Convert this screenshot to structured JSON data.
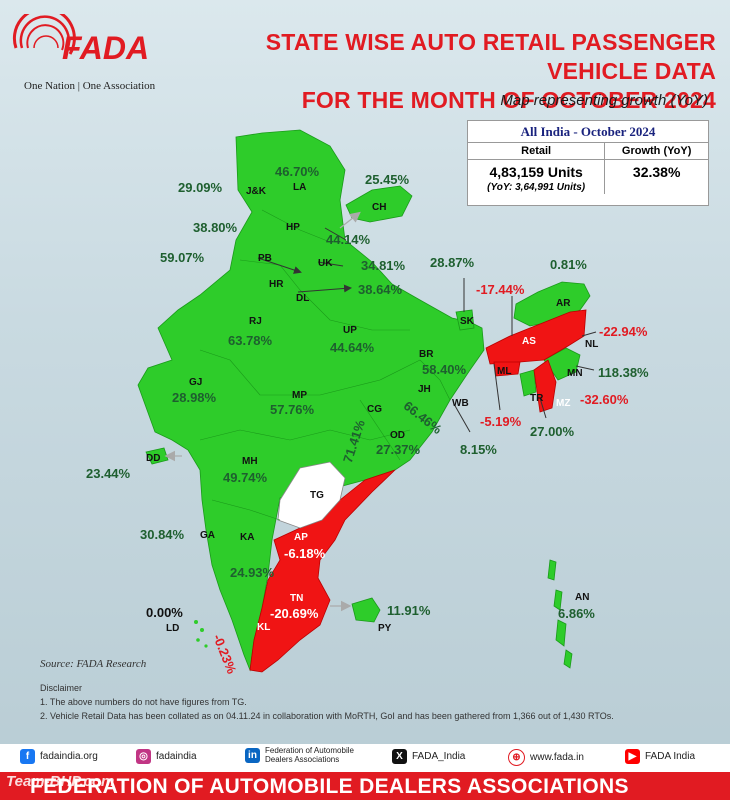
{
  "brand": {
    "logo_text": "FADA",
    "tagline": "One Nation | One Association"
  },
  "header": {
    "title_line1": "STATE WISE AUTO RETAIL PASSENGER VEHICLE DATA",
    "title_line2": "FOR THE MONTH OF OCTOBER 2024",
    "subtitle": "Map representing growth (YoY)"
  },
  "all_india": {
    "heading": "All India - October 2024",
    "col_retail": "Retail",
    "col_growth": "Growth (YoY)",
    "retail_value": "4,83,159 Units",
    "retail_prev": "(YoY: 3,64,991 Units)",
    "growth_value": "32.38%"
  },
  "states": [
    {
      "code": "J&K",
      "growth": "29.09%",
      "status": "positive"
    },
    {
      "code": "LA",
      "growth": "46.70%",
      "status": "positive"
    },
    {
      "code": "CH",
      "growth": "25.45%",
      "status": "positive"
    },
    {
      "code": "HP",
      "growth": "44.14%",
      "status": "positive"
    },
    {
      "code": "PB",
      "growth": "38.80%",
      "status": "positive"
    },
    {
      "code": "HR",
      "growth": "59.07%",
      "status": "positive"
    },
    {
      "code": "UK",
      "growth": "34.81%",
      "status": "positive"
    },
    {
      "code": "DL",
      "growth": "38.64%",
      "status": "positive"
    },
    {
      "code": "RJ",
      "growth": "63.78%",
      "status": "positive"
    },
    {
      "code": "UP",
      "growth": "44.64%",
      "status": "positive"
    },
    {
      "code": "SK",
      "growth": "28.87%",
      "status": "positive"
    },
    {
      "code": "AR",
      "growth": "0.81%",
      "status": "positive"
    },
    {
      "code": "AS",
      "growth": "-17.44%",
      "status": "negative"
    },
    {
      "code": "NL",
      "growth": "-22.94%",
      "status": "negative"
    },
    {
      "code": "BR",
      "growth": "58.40%",
      "status": "positive"
    },
    {
      "code": "ML",
      "growth": "-5.19%",
      "status": "negative"
    },
    {
      "code": "MN",
      "growth": "118.38%",
      "status": "positive"
    },
    {
      "code": "GJ",
      "growth": "28.98%",
      "status": "positive"
    },
    {
      "code": "MP",
      "growth": "57.76%",
      "status": "positive"
    },
    {
      "code": "JH",
      "growth": "66.46%",
      "status": "positive"
    },
    {
      "code": "WB",
      "growth": "8.15%",
      "status": "positive"
    },
    {
      "code": "TR",
      "growth": "27.00%",
      "status": "positive"
    },
    {
      "code": "MZ",
      "growth": "-32.60%",
      "status": "negative"
    },
    {
      "code": "CG",
      "growth": "71.41%",
      "status": "positive"
    },
    {
      "code": "OD",
      "growth": "27.37%",
      "status": "positive"
    },
    {
      "code": "DD",
      "growth": "23.44%",
      "status": "positive"
    },
    {
      "code": "MH",
      "growth": "49.74%",
      "status": "positive"
    },
    {
      "code": "TG",
      "growth": "",
      "status": "no-data"
    },
    {
      "code": "GA",
      "growth": "30.84%",
      "status": "positive"
    },
    {
      "code": "KA",
      "growth": "24.93%",
      "status": "positive"
    },
    {
      "code": "AP",
      "growth": "-6.18%",
      "status": "negative"
    },
    {
      "code": "TN",
      "growth": "-20.69%",
      "status": "negative"
    },
    {
      "code": "KL",
      "growth": "-0.23%",
      "status": "negative"
    },
    {
      "code": "PY",
      "growth": "11.91%",
      "status": "positive"
    },
    {
      "code": "LD",
      "growth": "0.00%",
      "status": "positive"
    },
    {
      "code": "AN",
      "growth": "6.86%",
      "status": "positive"
    }
  ],
  "colors": {
    "positive": "#2ecc2a",
    "negative": "#f01414",
    "no_data": "#ffffff",
    "accent": "#e11b22"
  },
  "source": "Source: FADA Research",
  "disclaimer": {
    "heading": "Disclaimer",
    "item1": "1.  The above numbers do not have figures from TG.",
    "item2": "2.  Vehicle Retail Data has been collated as on 04.11.24 in collaboration with MoRTH, GoI and has been gathered from 1,366 out of 1,430 RTOs."
  },
  "social": {
    "website1": "fadaindia.org",
    "instagram": "fadaindia",
    "linkedin_line1": "Federation of Automobile",
    "linkedin_line2": "Dealers Associations",
    "x": "FADA_India",
    "website2": "www.fada.in",
    "youtube": "FADA India"
  },
  "footer": {
    "text": "FEDERATION OF AUTOMOBILE DEALERS ASSOCIATIONS"
  },
  "watermark": "Team-BHP.com"
}
